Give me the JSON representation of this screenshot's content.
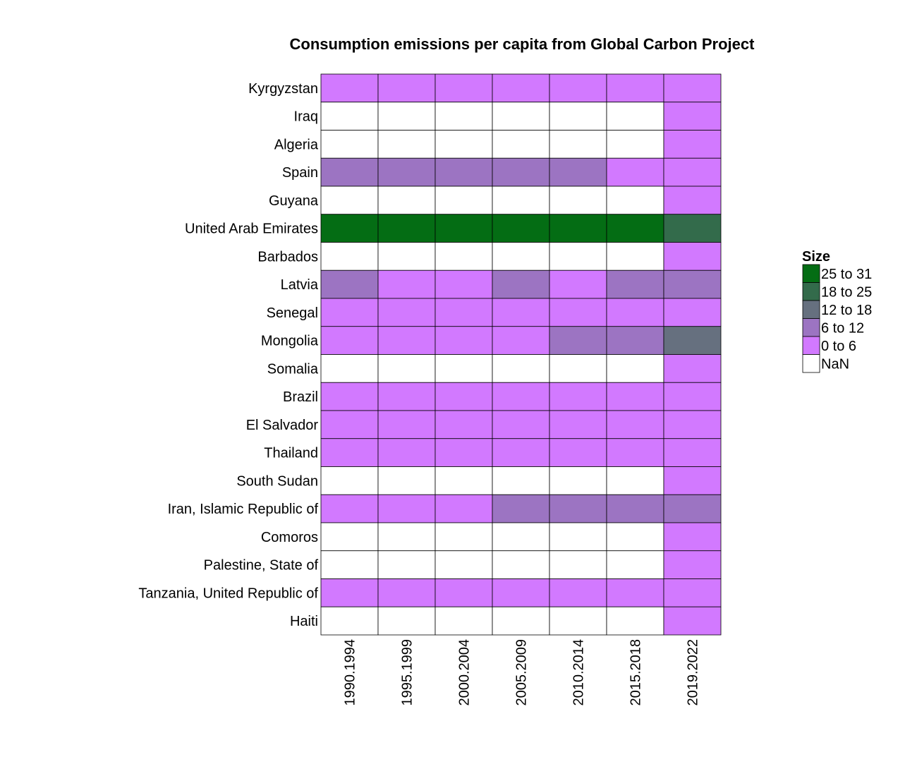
{
  "chart_data": {
    "type": "heatmap",
    "title": "Consumption emissions per capita from Global Carbon Project",
    "columns": [
      "1990.1994",
      "1995.1999",
      "2000.2004",
      "2005.2009",
      "2010.2014",
      "2015.2018",
      "2019.2022"
    ],
    "rows": [
      "Kyrgyzstan",
      "Iraq",
      "Algeria",
      "Spain",
      "Guyana",
      "United Arab Emirates",
      "Barbados",
      "Latvia",
      "Senegal",
      "Mongolia",
      "Somalia",
      "Brazil",
      "El Salvador",
      "Thailand",
      "South Sudan",
      "Iran, Islamic Republic of",
      "Comoros",
      "Palestine, State of",
      "Tanzania, United Republic of",
      "Haiti"
    ],
    "cells": [
      [
        "0 to 6",
        "0 to 6",
        "0 to 6",
        "0 to 6",
        "0 to 6",
        "0 to 6",
        "0 to 6"
      ],
      [
        "NaN",
        "NaN",
        "NaN",
        "NaN",
        "NaN",
        "NaN",
        "0 to 6"
      ],
      [
        "NaN",
        "NaN",
        "NaN",
        "NaN",
        "NaN",
        "NaN",
        "0 to 6"
      ],
      [
        "6 to 12",
        "6 to 12",
        "6 to 12",
        "6 to 12",
        "6 to 12",
        "0 to 6",
        "0 to 6"
      ],
      [
        "NaN",
        "NaN",
        "NaN",
        "NaN",
        "NaN",
        "NaN",
        "0 to 6"
      ],
      [
        "25 to 31",
        "25 to 31",
        "25 to 31",
        "25 to 31",
        "25 to 31",
        "25 to 31",
        "18 to 25"
      ],
      [
        "NaN",
        "NaN",
        "NaN",
        "NaN",
        "NaN",
        "NaN",
        "0 to 6"
      ],
      [
        "6 to 12",
        "0 to 6",
        "0 to 6",
        "6 to 12",
        "0 to 6",
        "6 to 12",
        "6 to 12"
      ],
      [
        "0 to 6",
        "0 to 6",
        "0 to 6",
        "0 to 6",
        "0 to 6",
        "0 to 6",
        "0 to 6"
      ],
      [
        "0 to 6",
        "0 to 6",
        "0 to 6",
        "0 to 6",
        "6 to 12",
        "6 to 12",
        "12 to 18"
      ],
      [
        "NaN",
        "NaN",
        "NaN",
        "NaN",
        "NaN",
        "NaN",
        "0 to 6"
      ],
      [
        "0 to 6",
        "0 to 6",
        "0 to 6",
        "0 to 6",
        "0 to 6",
        "0 to 6",
        "0 to 6"
      ],
      [
        "0 to 6",
        "0 to 6",
        "0 to 6",
        "0 to 6",
        "0 to 6",
        "0 to 6",
        "0 to 6"
      ],
      [
        "0 to 6",
        "0 to 6",
        "0 to 6",
        "0 to 6",
        "0 to 6",
        "0 to 6",
        "0 to 6"
      ],
      [
        "NaN",
        "NaN",
        "NaN",
        "NaN",
        "NaN",
        "NaN",
        "0 to 6"
      ],
      [
        "0 to 6",
        "0 to 6",
        "0 to 6",
        "6 to 12",
        "6 to 12",
        "6 to 12",
        "6 to 12"
      ],
      [
        "NaN",
        "NaN",
        "NaN",
        "NaN",
        "NaN",
        "NaN",
        "0 to 6"
      ],
      [
        "NaN",
        "NaN",
        "NaN",
        "NaN",
        "NaN",
        "NaN",
        "0 to 6"
      ],
      [
        "0 to 6",
        "0 to 6",
        "0 to 6",
        "0 to 6",
        "0 to 6",
        "0 to 6",
        "0 to 6"
      ],
      [
        "NaN",
        "NaN",
        "NaN",
        "NaN",
        "NaN",
        "NaN",
        "0 to 6"
      ]
    ],
    "legend": {
      "title": "Size",
      "position": "right",
      "items": [
        {
          "label": "25 to 31",
          "color": "#046D14"
        },
        {
          "label": "18 to 25",
          "color": "#336B4B"
        },
        {
          "label": "12 to 18",
          "color": "#66707F"
        },
        {
          "label": "6 to 12",
          "color": "#9C74C2"
        },
        {
          "label": "0 to 6",
          "color": "#D279FF"
        },
        {
          "label": "NaN",
          "color": "#FFFFFF"
        }
      ]
    },
    "grid": true
  }
}
